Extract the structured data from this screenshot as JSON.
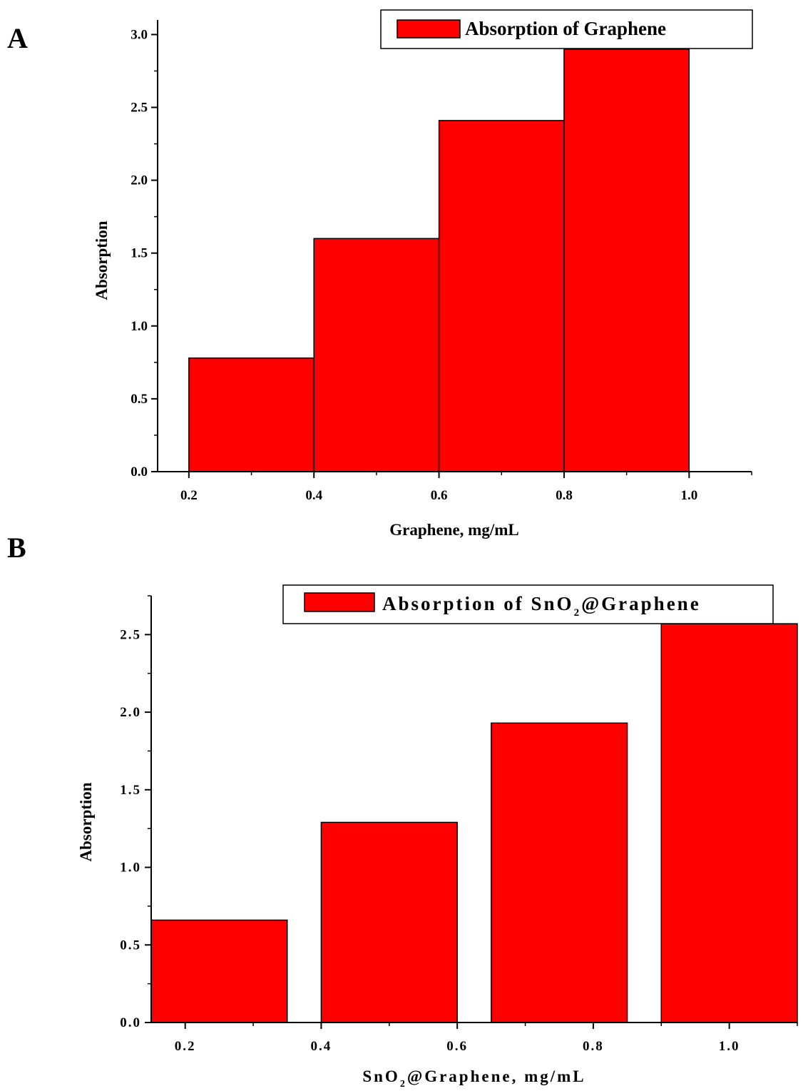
{
  "colors": {
    "bar_fill": "#ff0000",
    "bar_stroke": "#000000",
    "axis": "#000000"
  },
  "chart_data": [
    {
      "type": "bar",
      "panel_label": "A",
      "categories": [
        "0.2",
        "0.4",
        "0.6",
        "0.8",
        "1.0"
      ],
      "series": [
        {
          "name": "Absorption of Graphene",
          "x": [
            0.3,
            0.5,
            0.7,
            0.9
          ],
          "values": [
            0.78,
            1.6,
            2.41,
            2.9
          ]
        }
      ],
      "x_ticks": [
        0.2,
        0.4,
        0.6,
        0.8,
        1.0
      ],
      "y_ticks": [
        "0.0",
        "0.5",
        "1.0",
        "1.5",
        "2.0",
        "2.5",
        "3.0"
      ],
      "xlim": [
        0.15,
        1.1
      ],
      "ylim": [
        0,
        3.1
      ],
      "bar_width": 0.2,
      "xlabel": "Graphene, mg/mL",
      "ylabel": "Absorption",
      "legend": {
        "label": "Absorption of Graphene",
        "placement": "top-right"
      }
    },
    {
      "type": "bar",
      "panel_label": "B",
      "categories": [
        "0.2",
        "0.4",
        "0.6",
        "0.8",
        "1.0"
      ],
      "series": [
        {
          "name": "Absorption of SnO2@Graphene",
          "x": [
            0.25,
            0.5,
            0.75,
            1.0
          ],
          "values": [
            0.66,
            1.29,
            1.93,
            2.57
          ]
        }
      ],
      "x_ticks": [
        0.2,
        0.4,
        0.6,
        0.8,
        1.0
      ],
      "y_ticks": [
        "0.0",
        "0.5",
        "1.0",
        "1.5",
        "2.0",
        "2.5"
      ],
      "xlim": [
        0.15,
        1.1
      ],
      "ylim": [
        0,
        2.75
      ],
      "bar_width": 0.2,
      "xlabel_parts": {
        "pre": "SnO",
        "sub": "2",
        "post": "@Graphene, mg/mL"
      },
      "ylabel": "Absorption",
      "legend": {
        "label_parts": {
          "pre": "Absorption of SnO",
          "sub": "2",
          "post": "@Graphene"
        },
        "placement": "top-right"
      }
    }
  ]
}
